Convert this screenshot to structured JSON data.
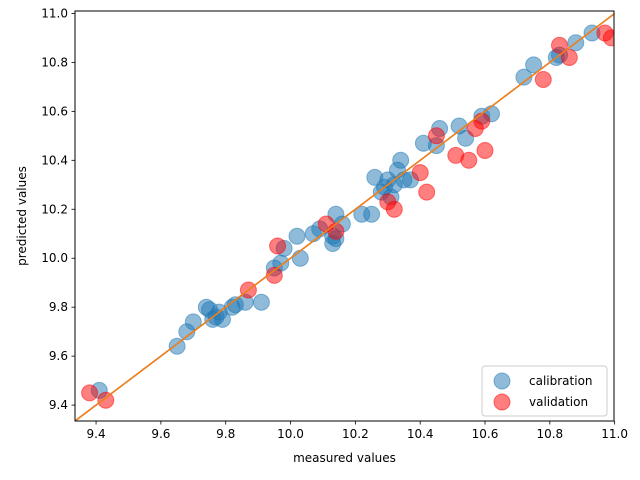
{
  "chart_data": {
    "type": "scatter",
    "xlabel": "measured values",
    "ylabel": "predicted values",
    "xlim": [
      9.335,
      10.998
    ],
    "ylim": [
      9.335,
      11.01
    ],
    "xticks": [
      9.4,
      9.6,
      9.8,
      10.0,
      10.2,
      10.4,
      10.6,
      10.8,
      11.0
    ],
    "yticks": [
      9.4,
      9.6,
      9.8,
      10.0,
      10.2,
      10.4,
      10.6,
      10.8,
      11.0
    ],
    "xtick_labels": [
      "9.4",
      "9.6",
      "9.8",
      "10.0",
      "10.2",
      "10.4",
      "10.6",
      "10.8",
      "11.0"
    ],
    "ytick_labels": [
      "9.4",
      "9.6",
      "9.8",
      "10.0",
      "10.2",
      "10.4",
      "10.6",
      "10.8",
      "11.0"
    ],
    "grid": false,
    "legend_position": "lower-right",
    "series": [
      {
        "name": "calibration",
        "color": "#1f77b4",
        "points": [
          [
            9.41,
            9.46
          ],
          [
            9.65,
            9.64
          ],
          [
            9.68,
            9.7
          ],
          [
            9.7,
            9.74
          ],
          [
            9.74,
            9.8
          ],
          [
            9.75,
            9.79
          ],
          [
            9.76,
            9.75
          ],
          [
            9.77,
            9.76
          ],
          [
            9.78,
            9.78
          ],
          [
            9.79,
            9.75
          ],
          [
            9.82,
            9.8
          ],
          [
            9.83,
            9.81
          ],
          [
            9.86,
            9.82
          ],
          [
            9.91,
            9.82
          ],
          [
            9.95,
            9.96
          ],
          [
            9.97,
            9.98
          ],
          [
            9.98,
            10.04
          ],
          [
            10.02,
            10.09
          ],
          [
            10.03,
            10.0
          ],
          [
            10.07,
            10.1
          ],
          [
            10.09,
            10.12
          ],
          [
            10.13,
            10.06
          ],
          [
            10.13,
            10.09
          ],
          [
            10.14,
            10.08
          ],
          [
            10.14,
            10.18
          ],
          [
            10.16,
            10.14
          ],
          [
            10.22,
            10.18
          ],
          [
            10.25,
            10.18
          ],
          [
            10.26,
            10.33
          ],
          [
            10.28,
            10.27
          ],
          [
            10.29,
            10.29
          ],
          [
            10.3,
            10.32
          ],
          [
            10.31,
            10.25
          ],
          [
            10.32,
            10.3
          ],
          [
            10.33,
            10.36
          ],
          [
            10.34,
            10.4
          ],
          [
            10.35,
            10.32
          ],
          [
            10.37,
            10.32
          ],
          [
            10.41,
            10.47
          ],
          [
            10.45,
            10.46
          ],
          [
            10.46,
            10.53
          ],
          [
            10.52,
            10.54
          ],
          [
            10.54,
            10.49
          ],
          [
            10.59,
            10.58
          ],
          [
            10.62,
            10.59
          ],
          [
            10.72,
            10.74
          ],
          [
            10.75,
            10.79
          ],
          [
            10.82,
            10.82
          ],
          [
            10.83,
            10.83
          ],
          [
            10.88,
            10.88
          ],
          [
            10.93,
            10.92
          ]
        ]
      },
      {
        "name": "validation",
        "color": "#ff0000",
        "points": [
          [
            9.38,
            9.45
          ],
          [
            9.43,
            9.42
          ],
          [
            9.87,
            9.87
          ],
          [
            9.95,
            9.93
          ],
          [
            9.96,
            10.05
          ],
          [
            10.11,
            10.14
          ],
          [
            10.14,
            10.11
          ],
          [
            10.3,
            10.23
          ],
          [
            10.32,
            10.2
          ],
          [
            10.4,
            10.35
          ],
          [
            10.42,
            10.27
          ],
          [
            10.45,
            10.5
          ],
          [
            10.51,
            10.42
          ],
          [
            10.55,
            10.4
          ],
          [
            10.57,
            10.53
          ],
          [
            10.59,
            10.56
          ],
          [
            10.6,
            10.44
          ],
          [
            10.78,
            10.73
          ],
          [
            10.83,
            10.87
          ],
          [
            10.86,
            10.82
          ],
          [
            10.97,
            10.92
          ],
          [
            10.99,
            10.9
          ]
        ]
      }
    ],
    "lines": [
      {
        "color": "#1f77b4",
        "from": [
          9.335,
          9.335
        ],
        "to": [
          10.998,
          10.998
        ]
      },
      {
        "color": "#ff7f0e",
        "from": [
          9.335,
          9.335
        ],
        "to": [
          10.998,
          10.998
        ]
      }
    ]
  }
}
